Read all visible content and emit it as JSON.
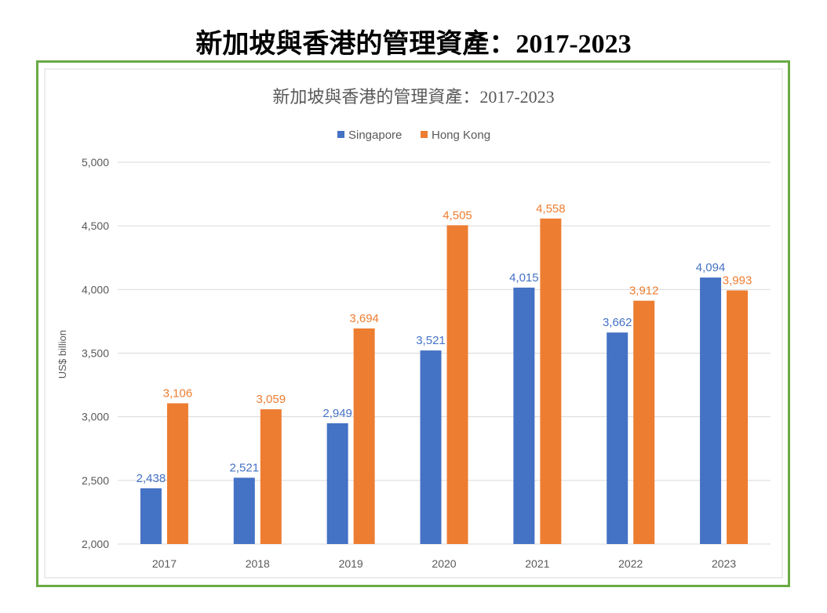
{
  "page_title": "新加坡與香港的管理資產：2017-2023",
  "colors": {
    "singapore": "#4472c4",
    "hong_kong": "#ed7d31",
    "frame": "#6aaa45"
  },
  "chart_data": {
    "type": "bar",
    "title": "新加坡與香港的管理資產：2017-2023",
    "xlabel": "",
    "ylabel": "US$ billion",
    "ylim": [
      2000,
      5000
    ],
    "yticks": [
      2000,
      2500,
      3000,
      3500,
      4000,
      4500,
      5000
    ],
    "ytick_labels": [
      "2,000",
      "2,500",
      "3,000",
      "3,500",
      "4,000",
      "4,500",
      "5,000"
    ],
    "grid": true,
    "legend": "top",
    "categories": [
      "2017",
      "2018",
      "2019",
      "2020",
      "2021",
      "2022",
      "2023"
    ],
    "series": [
      {
        "name": "Singapore",
        "color": "#4472c4",
        "values": [
          2438,
          2521,
          2949,
          3521,
          4015,
          3662,
          4094
        ],
        "labels": [
          "2,438",
          "2,521",
          "2,949",
          "3,521",
          "4,015",
          "3,662",
          "4,094"
        ]
      },
      {
        "name": "Hong Kong",
        "color": "#ed7d31",
        "values": [
          3106,
          3059,
          3694,
          4505,
          4558,
          3912,
          3993
        ],
        "labels": [
          "3,106",
          "3,059",
          "3,694",
          "4,505",
          "4,558",
          "3,912",
          "3,993"
        ]
      }
    ]
  }
}
